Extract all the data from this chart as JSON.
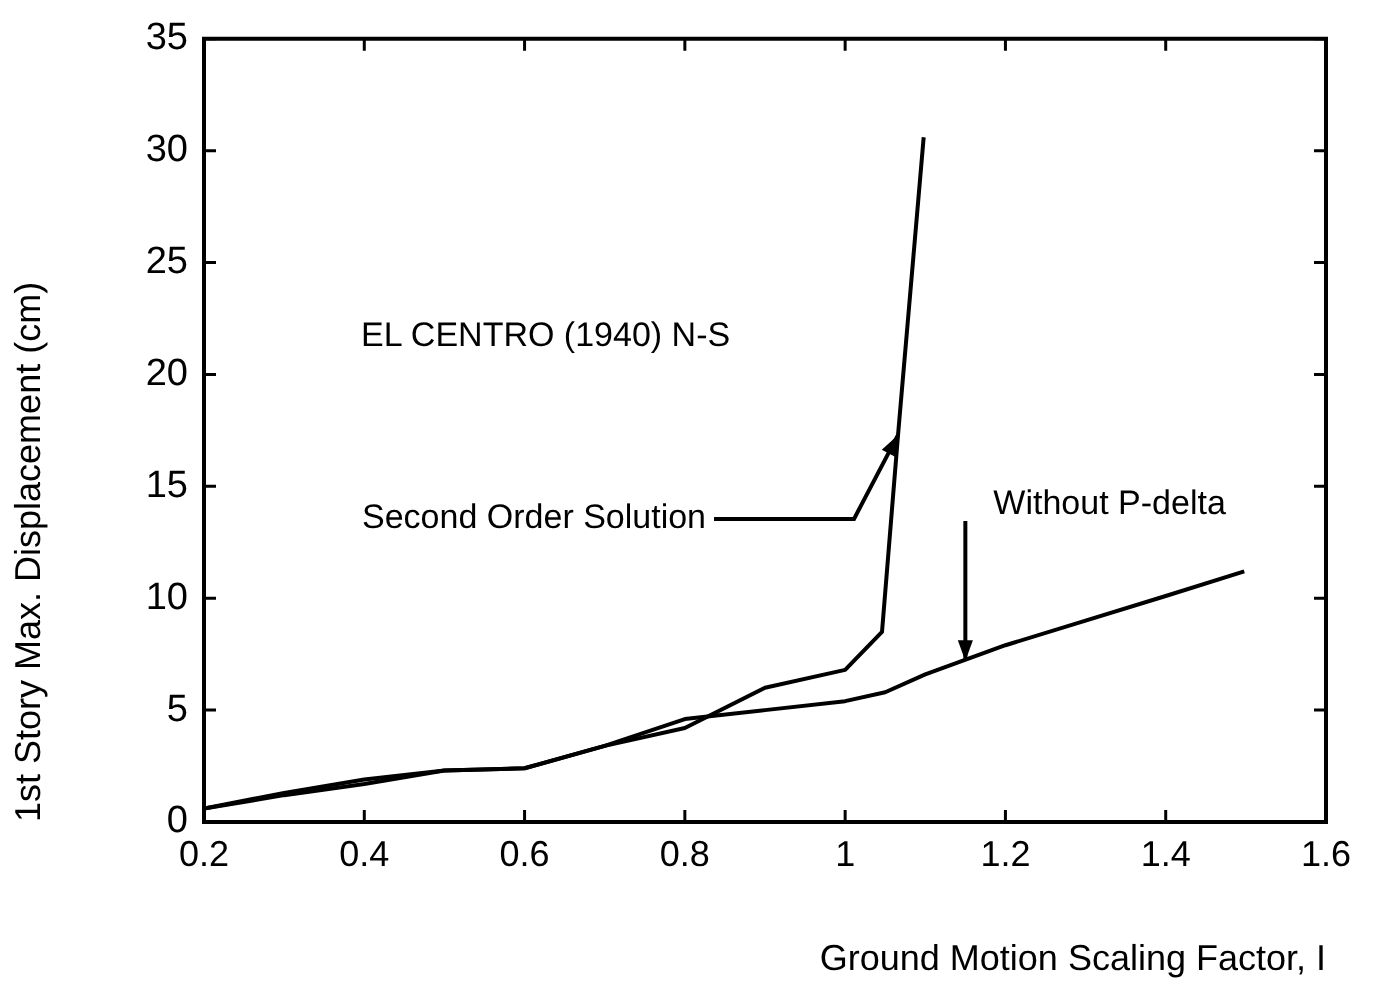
{
  "chart_data": {
    "type": "line",
    "xlabel": "Ground Motion Scaling Factor, I",
    "ylabel": "1st Story Max. Displacement (cm)",
    "xlim": [
      0.2,
      1.6
    ],
    "xticks": [
      0.2,
      0.4,
      0.6,
      0.8,
      1,
      1.2,
      1.4,
      1.6
    ],
    "ylim": [
      0,
      35
    ],
    "yticks": [
      0,
      5,
      10,
      15,
      20,
      25,
      30,
      35
    ],
    "grid": false,
    "legend": false,
    "marker": "none",
    "line_style": "solid",
    "series": [
      {
        "color": "#000000",
        "x": [
          0.2,
          0.3,
          0.4,
          0.5,
          0.6,
          0.7,
          0.8,
          0.9,
          1.0,
          1.046,
          1.066,
          1.098
        ],
        "values": [
          0.6,
          1.2,
          1.7,
          2.3,
          2.4,
          3.4,
          4.2,
          6.0,
          6.8,
          8.5,
          17.3,
          30.6
        ]
      },
      {
        "color": "#000000",
        "x": [
          0.2,
          0.3,
          0.4,
          0.5,
          0.6,
          0.7,
          0.8,
          0.9,
          1.0,
          1.05,
          1.1,
          1.2,
          1.3,
          1.4,
          1.498
        ],
        "values": [
          0.6,
          1.3,
          1.9,
          2.3,
          2.4,
          3.4,
          4.6,
          5.0,
          5.4,
          5.8,
          6.6,
          7.9,
          9.0,
          10.1,
          11.2
        ]
      }
    ],
    "annotations": [
      "EL CENTRO (1940) N-S",
      {
        "text": "Second Order Solution",
        "x": 1.066,
        "y": 17.3
      },
      {
        "text": "Without P-delta",
        "x": 1.15,
        "y": 7.2
      }
    ]
  }
}
